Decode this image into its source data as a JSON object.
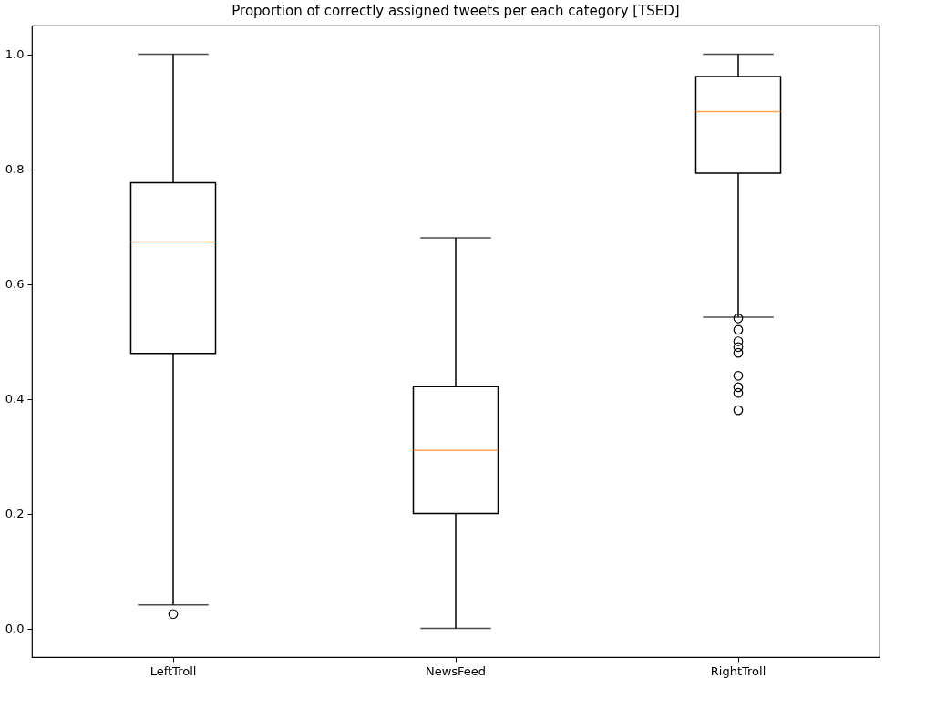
{
  "chart_data": {
    "type": "box",
    "title": "Proportion of correctly assigned tweets per each category [TSED]",
    "categories": [
      "LeftTroll",
      "NewsFeed",
      "RightTroll"
    ],
    "boxes": [
      {
        "low": 0.041,
        "q1": 0.479,
        "median": 0.673,
        "q3": 0.776,
        "high": 1.0,
        "outliers": [
          0.025
        ]
      },
      {
        "low": 0.0,
        "q1": 0.2,
        "median": 0.31,
        "q3": 0.421,
        "high": 0.68
      },
      {
        "low": 0.542,
        "q1": 0.793,
        "median": 0.9,
        "q3": 0.961,
        "high": 1.0,
        "outliers": [
          0.54,
          0.52,
          0.5,
          0.49,
          0.48,
          0.44,
          0.42,
          0.41,
          0.38
        ]
      }
    ],
    "color": "#000000",
    "ylim": [
      -0.05,
      1.05
    ],
    "yticks": [
      {
        "value": 0,
        "label": "0.0"
      },
      0.2,
      0.4,
      0.6,
      0.8,
      {
        "value": 1,
        "label": "1.0"
      }
    ],
    "grid": false
  }
}
